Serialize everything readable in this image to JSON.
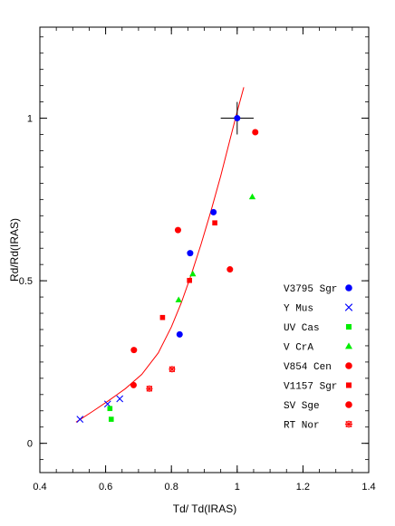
{
  "chart_data": {
    "type": "scatter",
    "title": "",
    "xlabel": "Td/ Td(IRAS)",
    "ylabel": "Rd/Rd(IRAS)",
    "xlim": [
      0.4,
      1.4
    ],
    "ylim": [
      -0.09,
      1.28
    ],
    "x_ticks": [
      0.4,
      0.6,
      0.8,
      1.0,
      1.2,
      1.4
    ],
    "x_tick_labels": [
      "0.4",
      "0.6",
      "0.8",
      "1",
      "1.2",
      "1.4"
    ],
    "y_ticks": [
      0,
      0.5,
      1.0
    ],
    "y_tick_labels": [
      "0",
      "0.5",
      "1"
    ],
    "grid": false,
    "legend_position": "right",
    "series": [
      {
        "name": "V3795 Sgr",
        "marker": "circle",
        "color": "#0000ff",
        "x": [
          0.825,
          0.857,
          0.928
        ],
        "y": [
          0.335,
          0.585,
          0.711
        ]
      },
      {
        "name": "Y Mus",
        "marker": "x",
        "color": "#0000ff",
        "x": [
          0.522,
          0.606,
          0.643
        ],
        "y": [
          0.074,
          0.121,
          0.137
        ]
      },
      {
        "name": "UV Cas",
        "marker": "square",
        "color": "#00ee00",
        "x": [
          0.613,
          0.617
        ],
        "y": [
          0.107,
          0.074
        ]
      },
      {
        "name": "V CrA",
        "marker": "triangle",
        "color": "#00ee00",
        "x": [
          0.822,
          0.865,
          1.046
        ],
        "y": [
          0.441,
          0.521,
          0.758
        ]
      },
      {
        "name": "V854 Cen",
        "marker": "circle",
        "color": "#ff0000",
        "x": [
          0.686,
          0.82,
          0.978,
          1.055
        ],
        "y": [
          0.287,
          0.656,
          0.535,
          0.957
        ]
      },
      {
        "name": "V1157 Sgr",
        "marker": "square",
        "color": "#ff0000",
        "x": [
          0.773,
          0.855,
          0.932
        ],
        "y": [
          0.387,
          0.501,
          0.678
        ]
      },
      {
        "name": "SV Sge",
        "marker": "circle",
        "color": "#ff0000",
        "x": [
          0.685
        ],
        "y": [
          0.179
        ]
      },
      {
        "name": "RT Nor",
        "marker": "star",
        "color": "#ff0000",
        "x": [
          0.733,
          0.802
        ],
        "y": [
          0.168,
          0.228
        ]
      }
    ],
    "reference_point": {
      "x": 1.0,
      "y": 1.0,
      "color": "#0000ff",
      "x_error": 0.05,
      "y_error": 0.05
    },
    "fit_curve": {
      "color": "#ff0000",
      "x": [
        0.51,
        0.56,
        0.61,
        0.66,
        0.71,
        0.76,
        0.8,
        0.83,
        0.86,
        0.89,
        0.92,
        0.95,
        0.98,
        1.0,
        1.02
      ],
      "y": [
        0.065,
        0.098,
        0.132,
        0.168,
        0.212,
        0.278,
        0.358,
        0.432,
        0.518,
        0.612,
        0.714,
        0.823,
        0.941,
        1.02,
        1.095
      ]
    }
  }
}
